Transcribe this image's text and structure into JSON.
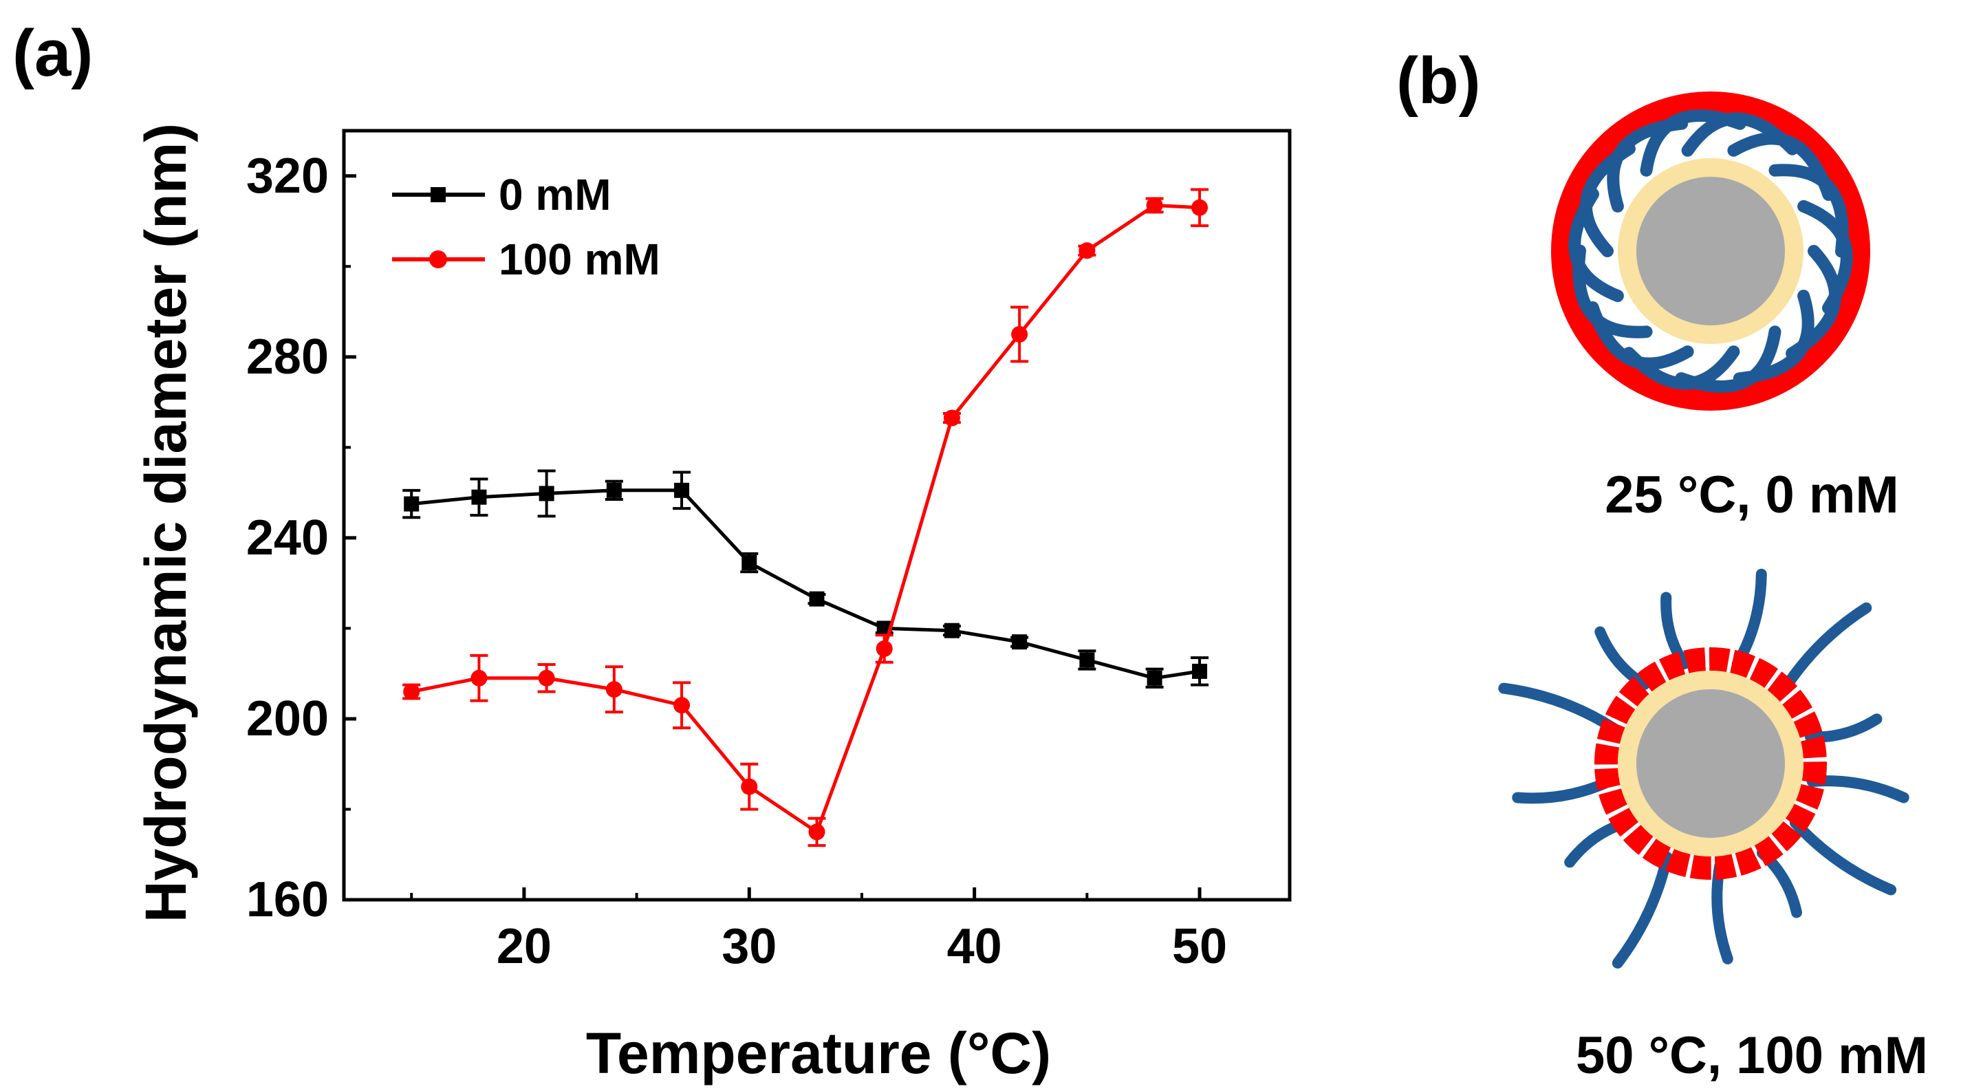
{
  "panel_labels": {
    "a": "(a)",
    "b": "(b)"
  },
  "chart_data": {
    "type": "line",
    "title": "",
    "xlabel": "Temperature (°C)",
    "ylabel": "Hydrodynamic diameter (nm)",
    "xlim": [
      12,
      54
    ],
    "ylim": [
      160,
      330
    ],
    "xticks": [
      20,
      30,
      40,
      50
    ],
    "yticks": [
      160,
      200,
      240,
      280,
      320
    ],
    "grid": false,
    "legend_position": "top-left",
    "x": [
      15,
      18,
      21,
      24,
      27,
      30,
      33,
      36,
      39,
      42,
      45,
      48,
      50
    ],
    "series": [
      {
        "name": "0 mM",
        "color": "#000000",
        "marker": "square",
        "values": [
          247.5,
          249,
          249.8,
          250.5,
          250.5,
          234.5,
          226.5,
          220,
          219.5,
          217,
          213,
          209,
          210.5
        ],
        "errors": [
          3,
          4,
          5,
          2,
          4,
          2,
          1,
          1,
          1,
          1,
          2,
          2,
          3
        ]
      },
      {
        "name": "100 mM",
        "color": "#ff0000",
        "marker": "circle",
        "values": [
          206,
          209,
          209,
          206.5,
          203,
          185,
          175,
          215.5,
          266.5,
          285,
          303.5,
          313.5,
          313
        ],
        "errors": [
          1.5,
          5,
          3,
          5,
          5,
          5,
          3,
          3,
          1,
          6,
          1,
          1.5,
          4
        ]
      }
    ]
  },
  "diagram": {
    "label_top": "25 °C, 0 mM",
    "label_bottom": "50 °C, 100 mM",
    "colors": {
      "core": "#a9a9a9",
      "shell": "#f9e2a2",
      "polymer": "#1f5a96",
      "collapsed": "#ff0000"
    }
  }
}
